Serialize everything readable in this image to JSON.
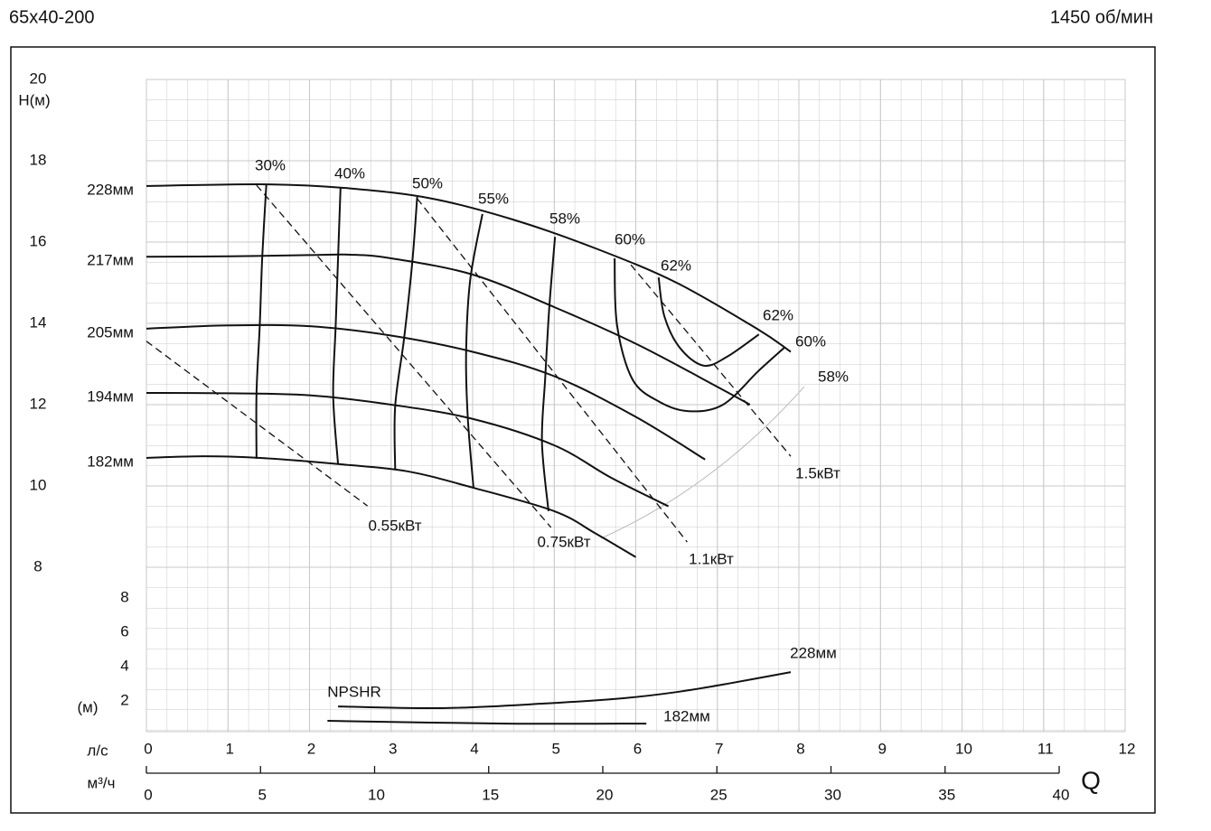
{
  "chart_data": {
    "type": "pump_curve",
    "title": "65х40-200",
    "speed": "1450 об/мин",
    "x_label": "л/с",
    "x2_label": "м³/ч",
    "q_label": "Q",
    "y_label": "Н(м)",
    "y2_label": "(м)",
    "line_color": "#111",
    "grid": true,
    "xlim": [
      0,
      12
    ],
    "xticks": [
      0,
      1,
      2,
      3,
      4,
      5,
      6,
      7,
      8,
      9,
      10,
      11,
      12
    ],
    "x2lim": [
      0,
      40
    ],
    "x2ticks": [
      0,
      5,
      10,
      15,
      20,
      25,
      30,
      35,
      40
    ],
    "ylim": [
      8,
      20
    ],
    "yticks": [
      8,
      10,
      12,
      14,
      16,
      18,
      20
    ],
    "y2lim": [
      0,
      8
    ],
    "y2ticks": [
      2,
      4,
      6,
      8
    ],
    "heads": [
      {
        "name": "228мм",
        "x": [
          0,
          1.5,
          2.5,
          3.5,
          4.5,
          5.5,
          6.5,
          7.5,
          7.9
        ],
        "values": [
          17.38,
          17.42,
          17.32,
          17.07,
          16.55,
          15.85,
          15.0,
          13.85,
          13.3
        ]
      },
      {
        "name": "217мм",
        "x": [
          0,
          1,
          2,
          2.5,
          3,
          4,
          5,
          6,
          7,
          7.4
        ],
        "values": [
          15.64,
          15.65,
          15.68,
          15.69,
          15.6,
          15.2,
          14.4,
          13.5,
          12.44,
          12.0
        ]
      },
      {
        "name": "205мм",
        "x": [
          0,
          1,
          2,
          3,
          4,
          5,
          6,
          6.85
        ],
        "values": [
          13.87,
          13.95,
          13.93,
          13.7,
          13.3,
          12.7,
          11.7,
          10.65
        ]
      },
      {
        "name": "194мм",
        "x": [
          0,
          1,
          2,
          3,
          4,
          5,
          5.7,
          6.4
        ],
        "values": [
          12.29,
          12.28,
          12.23,
          12.0,
          11.65,
          11.0,
          10.2,
          9.5
        ]
      },
      {
        "name": "182мм",
        "x": [
          0,
          0.7,
          1.4,
          2.4,
          3.2,
          4,
          5,
          5.5,
          6
        ],
        "values": [
          10.69,
          10.73,
          10.69,
          10.53,
          10.36,
          9.96,
          9.38,
          8.84,
          8.25
        ]
      }
    ],
    "efficiency": [
      {
        "name": "30%",
        "x": [
          1.47,
          1.42,
          1.39,
          1.35,
          1.35
        ],
        "values": [
          17.4,
          15.62,
          13.96,
          12.29,
          10.67
        ]
      },
      {
        "name": "40%",
        "x": [
          2.38,
          2.35,
          2.32,
          2.29,
          2.35
        ],
        "values": [
          17.33,
          15.62,
          13.91,
          12.22,
          10.53
        ]
      },
      {
        "name": "50%",
        "x": [
          3.32,
          3.26,
          3.16,
          3.05,
          3.05
        ],
        "values": [
          17.11,
          15.51,
          13.64,
          11.96,
          10.4
        ]
      },
      {
        "name": "55%",
        "x": [
          4.12,
          3.97,
          3.92,
          3.94,
          4.01
        ],
        "values": [
          16.69,
          15.07,
          13.29,
          11.69,
          9.96
        ]
      },
      {
        "name": "58%",
        "x": [
          5.01,
          4.94,
          4.89,
          4.85,
          4.93
        ],
        "values": [
          16.13,
          14.4,
          12.67,
          11.07,
          9.38
        ]
      },
      {
        "name": "60%",
        "x": [
          5.74,
          5.77,
          5.96,
          6.29,
          6.65,
          7.07,
          7.51,
          7.82
        ],
        "values": [
          15.6,
          13.96,
          12.62,
          12.07,
          11.84,
          12.0,
          12.84,
          13.4
        ]
      },
      {
        "name": "62%",
        "x": [
          6.28,
          6.35,
          6.54,
          6.83,
          7.12,
          7.51
        ],
        "values": [
          15.13,
          14.18,
          13.4,
          12.96,
          13.18,
          13.73
        ]
      }
    ],
    "power": [
      {
        "name": "0.55кВт",
        "x": [
          0,
          2.71
        ],
        "values": [
          13.56,
          9.51
        ]
      },
      {
        "name": "0.75кВт",
        "x": [
          1.35,
          4.96
        ],
        "values": [
          17.4,
          8.98
        ]
      },
      {
        "name": "1.1кВт",
        "x": [
          3.32,
          6.63
        ],
        "values": [
          17.07,
          8.62
        ]
      },
      {
        "name": "1.5кВт",
        "x": [
          5.94,
          7.9
        ],
        "values": [
          15.44,
          10.73
        ]
      }
    ],
    "npshr": {
      "name": "NPSHR",
      "series": [
        {
          "name": "228мм",
          "x": [
            2.35,
            3.63,
            4.85,
            5.85,
            6.52,
            7.18,
            7.9
          ],
          "values": [
            1.68,
            1.58,
            1.84,
            2.16,
            2.53,
            3.05,
            3.68
          ]
        },
        {
          "name": "182мм",
          "x": [
            2.22,
            4.41,
            6.13
          ],
          "values": [
            0.84,
            0.68,
            0.68
          ]
        }
      ]
    }
  }
}
